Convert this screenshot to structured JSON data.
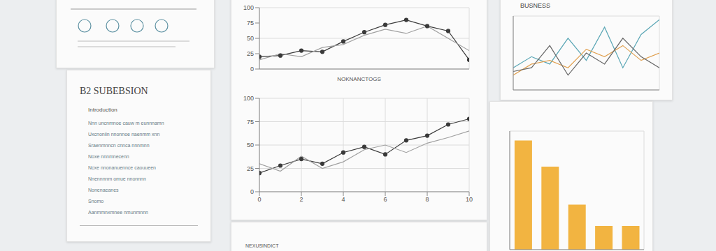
{
  "document": {
    "title": "B2 SUBEBSION",
    "subtitle": "Introduction",
    "lines": [
      "Nnn uncnmnoe cauw m eunnnamn",
      "Uxcnoniin nnonnoe naenmm xnn",
      "Sraenmnncn cnnca nnnmnn",
      "Noxe nnnmnecenn",
      "Ncxe nnonanuennce caouueen",
      "Nnennnnm omue nnonnnn",
      "Nonenaeanes",
      "Snomo",
      "Aanmmnxmnee nmunmnnn"
    ],
    "footer": "NEXUSINDICT"
  },
  "chart_data": [
    {
      "type": "line",
      "x_label": "NOKNANCTOGS",
      "x": [
        0,
        1,
        2,
        3,
        4,
        5,
        6,
        7,
        8,
        9,
        10
      ],
      "xlim": [
        0,
        10
      ],
      "xticks": [
        0,
        2,
        4,
        6,
        8,
        10
      ],
      "ylim": [
        0,
        100
      ],
      "yticks": [
        0,
        25,
        50,
        75,
        100
      ],
      "grid": true,
      "tick_labels": "y",
      "series": [
        {
          "color": "#3a3a3a",
          "marker": "circle",
          "values": [
            20,
            22,
            30,
            28,
            45,
            60,
            72,
            80,
            70,
            62,
            15
          ]
        },
        {
          "color": "#a0a0a0",
          "values": [
            15,
            25,
            20,
            35,
            40,
            55,
            65,
            58,
            70,
            50,
            30
          ]
        }
      ]
    },
    {
      "type": "line",
      "x": [
        0,
        1,
        2,
        3,
        4,
        5,
        6,
        7,
        8,
        9,
        10
      ],
      "xlim": [
        0,
        10
      ],
      "xticks": [
        0,
        2,
        4,
        6,
        8,
        10
      ],
      "ylim": [
        0,
        100
      ],
      "yticks": [
        0,
        25,
        50,
        75,
        100
      ],
      "grid": true,
      "series": [
        {
          "color": "#3a3a3a",
          "marker": "circle",
          "values": [
            20,
            28,
            35,
            30,
            42,
            48,
            40,
            55,
            60,
            72,
            78
          ]
        },
        {
          "color": "#a0a0a0",
          "values": [
            30,
            22,
            38,
            25,
            32,
            45,
            50,
            42,
            52,
            58,
            65
          ]
        }
      ]
    },
    {
      "type": "line",
      "title": "BUSNESS",
      "x": [
        0,
        1,
        2,
        3,
        4,
        5,
        6,
        7,
        8
      ],
      "xlim": [
        0,
        8
      ],
      "xticks": [
        0,
        2,
        4,
        6,
        8
      ],
      "ylim": [
        0,
        100
      ],
      "yticks": [
        0,
        50,
        100
      ],
      "grid": true,
      "tick_labels": false,
      "series": [
        {
          "color": "#5aa6b5",
          "values": [
            30,
            45,
            35,
            70,
            40,
            85,
            30,
            75,
            95
          ]
        },
        {
          "color": "#e0a050",
          "values": [
            20,
            35,
            40,
            30,
            55,
            45,
            60,
            40,
            50
          ]
        },
        {
          "color": "#666666",
          "values": [
            25,
            30,
            60,
            20,
            50,
            35,
            70,
            45,
            30
          ]
        }
      ]
    },
    {
      "type": "bar",
      "categories": [
        null,
        null,
        null,
        null,
        null
      ],
      "values": [
        92,
        70,
        38,
        20,
        20
      ],
      "color": "#f2b441",
      "ylim": [
        0,
        100
      ],
      "yticks": [
        0,
        25,
        50,
        75,
        100
      ],
      "grid": true,
      "tick_labels": false
    }
  ]
}
